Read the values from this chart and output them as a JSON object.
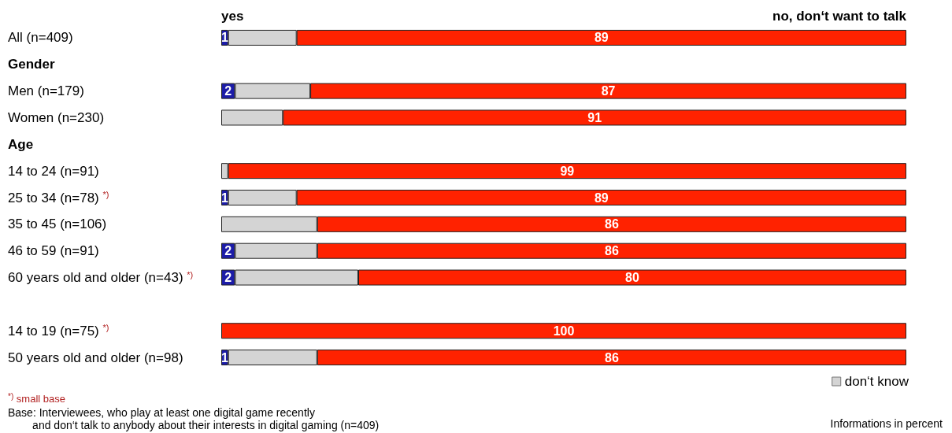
{
  "chart_data": {
    "type": "bar",
    "orientation": "horizontal",
    "stacked": true,
    "categories": [
      "All (n=409)",
      "Gender",
      "Men (n=179)",
      "Women (n=230)",
      "Age",
      "14 to 24 (n=91)",
      "25 to 34 (n=78) $^{*)}$",
      "35 to 45 (n=106)",
      "46 to 59 (n=91)",
      "60 years old and older (n=43) $^{*)}$",
      null,
      "14 to 19 (n=75) $^{*)}$",
      "50 years old and older (n=98)"
    ],
    "xlim": [
      0,
      100
    ],
    "series": [
      {
        "name": "yes",
        "color": "#1c1ca8",
        "values": [
          1,
          null,
          2,
          0,
          null,
          0,
          1,
          0,
          2,
          2,
          null,
          0,
          1
        ],
        "value_labels": [
          "1",
          null,
          "2",
          null,
          null,
          null,
          "1",
          null,
          "2",
          "2",
          null,
          null,
          "1"
        ]
      },
      {
        "name": "don‘t know",
        "color": "#d4d4d4",
        "values": [
          10,
          null,
          11,
          9,
          null,
          1,
          10,
          14,
          12,
          18,
          null,
          0,
          13
        ]
      },
      {
        "name": "no, don‘t want to talk",
        "color": "#ff2200",
        "values": [
          89,
          null,
          87,
          91,
          null,
          99,
          89,
          86,
          86,
          80,
          null,
          100,
          86
        ],
        "value_labels": [
          "89",
          null,
          "87",
          "91",
          null,
          "99",
          "89",
          "86",
          "86",
          "80",
          null,
          "100",
          "86"
        ]
      }
    ],
    "legend": "bottom right",
    "annotations": [
      "$^{*)}$ small base",
      "Base: Interviewees, who play at least one digital game recently\n        and don‘t talk to anybody about their interests in digital gaming (n=409)",
      "Informations in percent"
    ]
  }
}
